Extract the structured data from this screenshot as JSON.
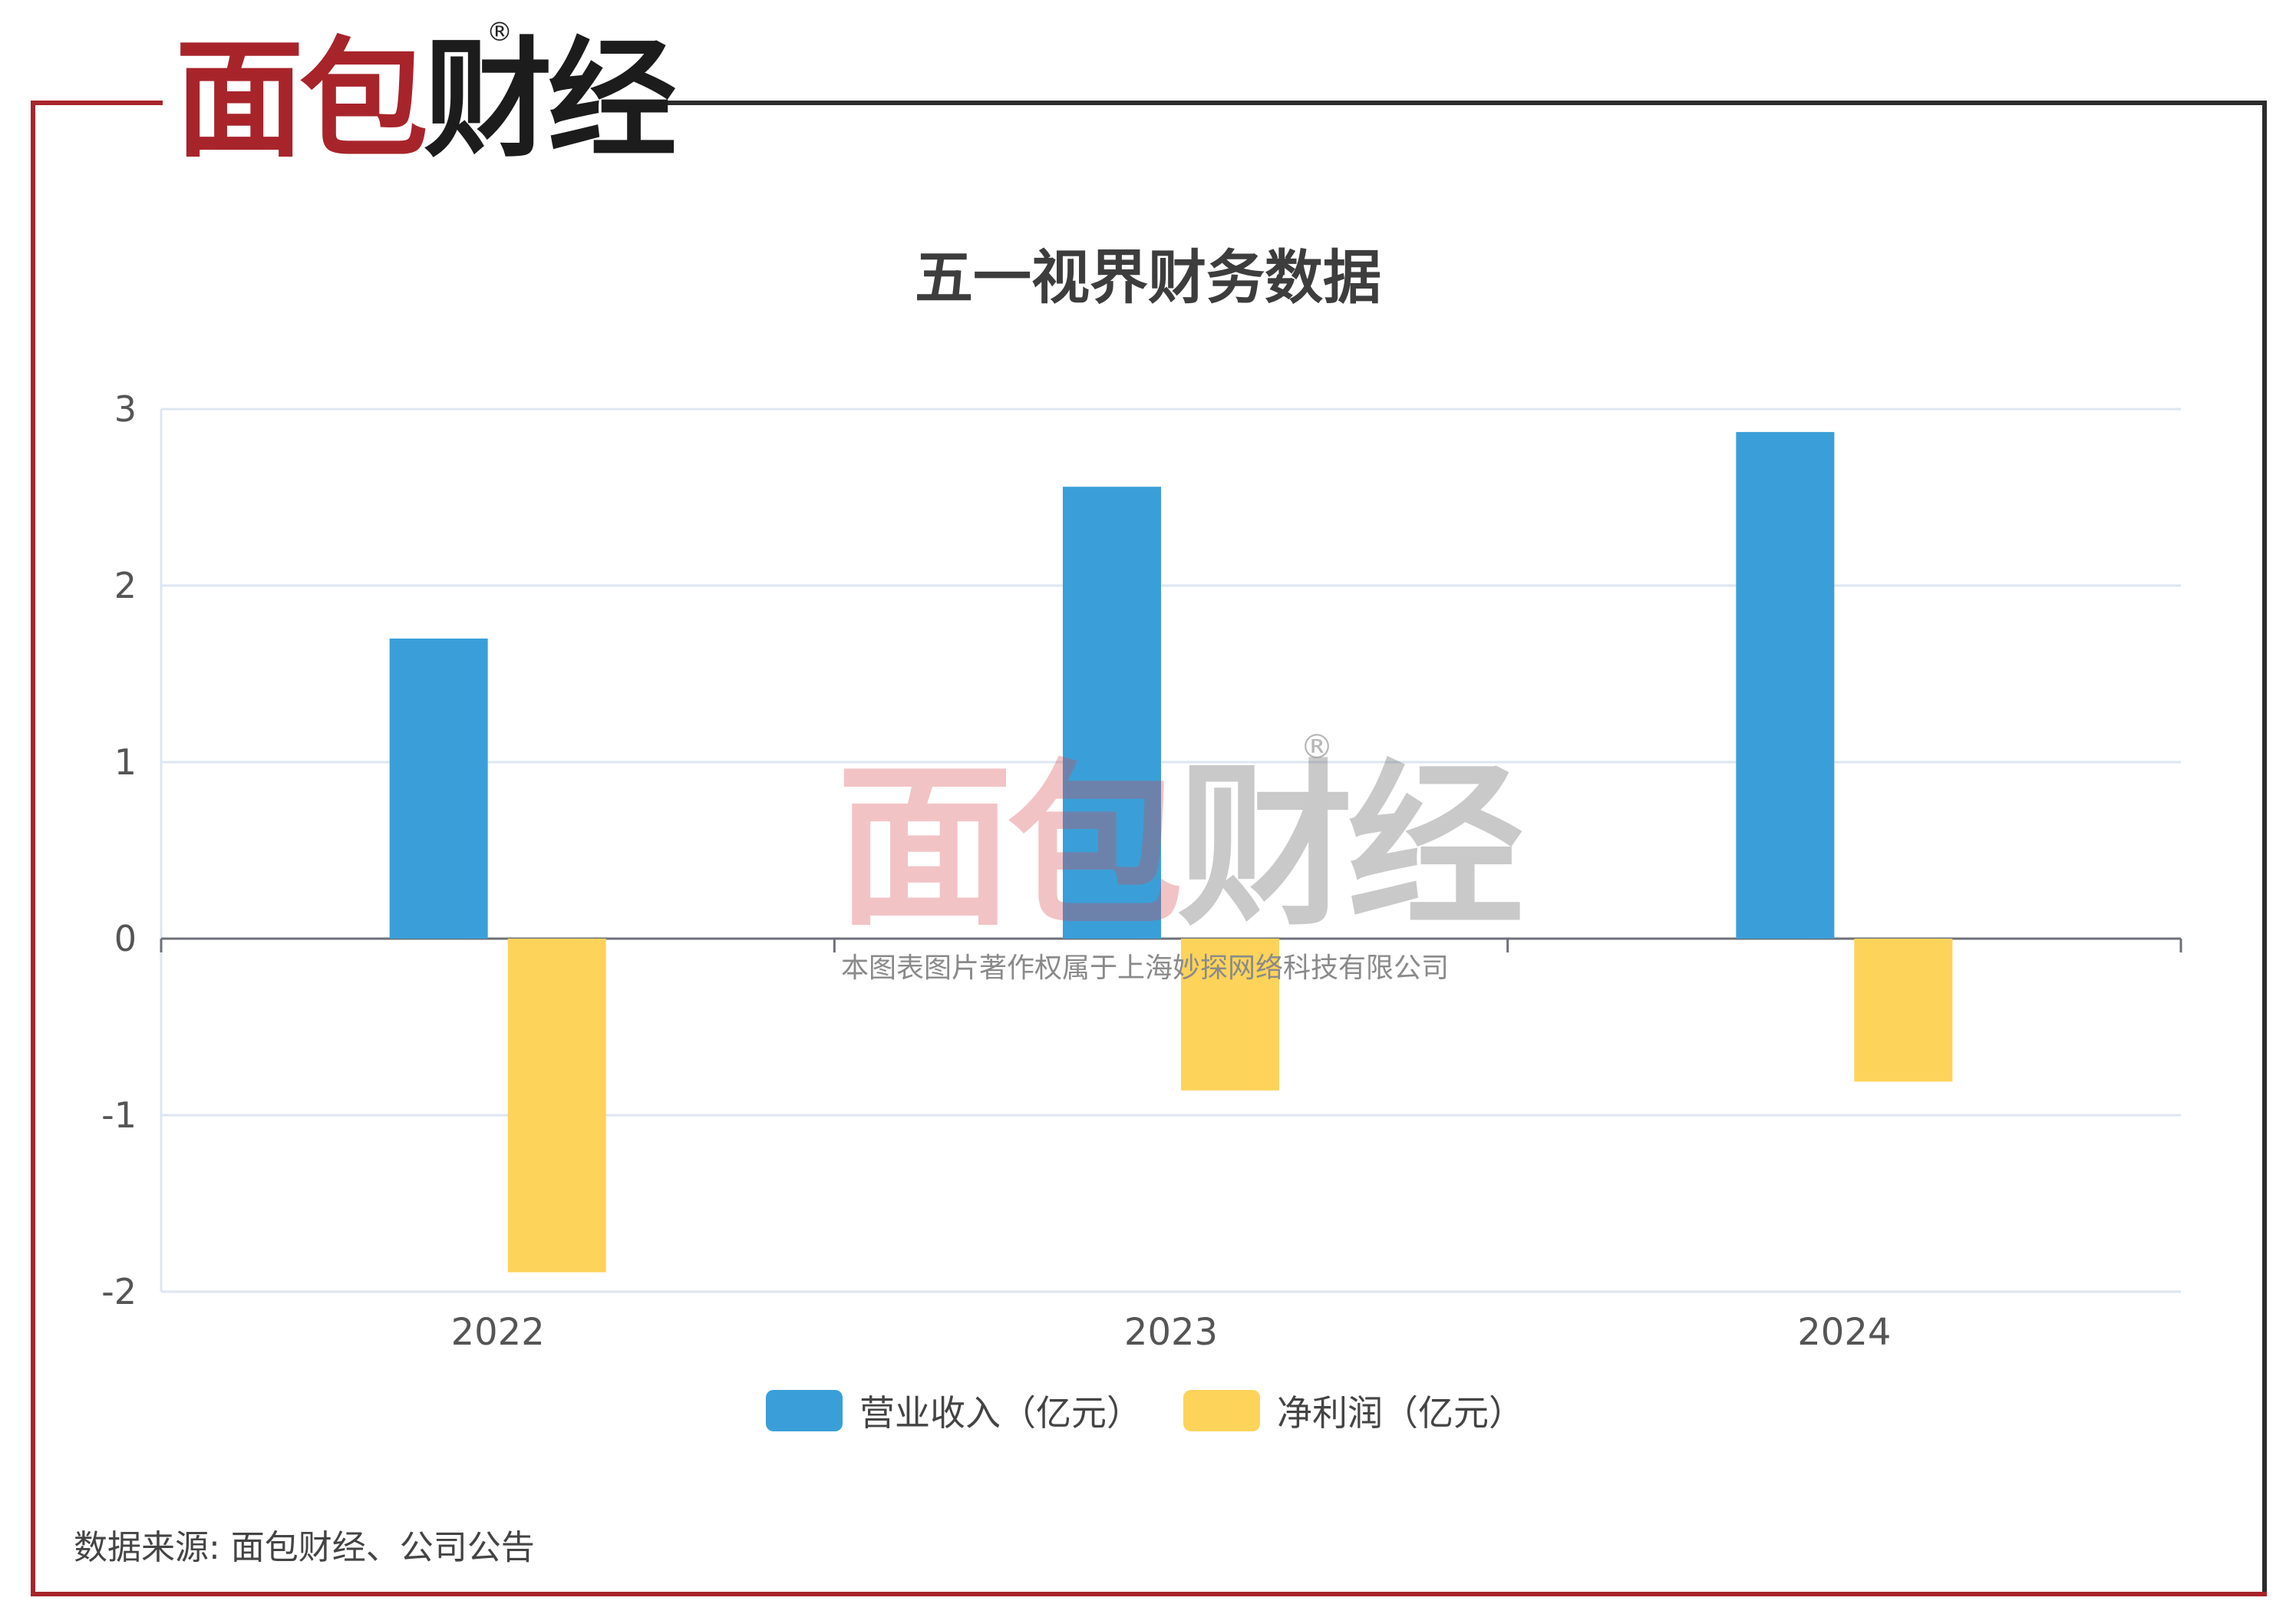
{
  "logo": {
    "part1": "面包",
    "part2": "财经",
    "registered": "®"
  },
  "watermark": {
    "part1": "面包",
    "part2": "财经",
    "registered": "®",
    "copyright": "本图表图片著作权属于上海妙探网络科技有限公司"
  },
  "source": "数据来源: 面包财经、公司公告",
  "colors": {
    "frame_red": "#a8242b",
    "revenue": "#3a9fd8",
    "net_profit": "#fdd35a",
    "grid": "#dde6f0",
    "axis": "#6e7079"
  },
  "chart_data": {
    "type": "bar",
    "title": "五一视界财务数据",
    "categories": [
      "2022",
      "2023",
      "2024"
    ],
    "series": [
      {
        "name": "营业收入（亿元）",
        "values": [
          1.7,
          2.56,
          2.87
        ]
      },
      {
        "name": "净利润（亿元）",
        "values": [
          -1.89,
          -0.86,
          -0.81
        ]
      }
    ],
    "ylim": [
      -2,
      3
    ],
    "yticks": [
      "3",
      "2",
      "1",
      "0",
      "-1",
      "-2"
    ],
    "grid": true,
    "legend": "bottom"
  }
}
